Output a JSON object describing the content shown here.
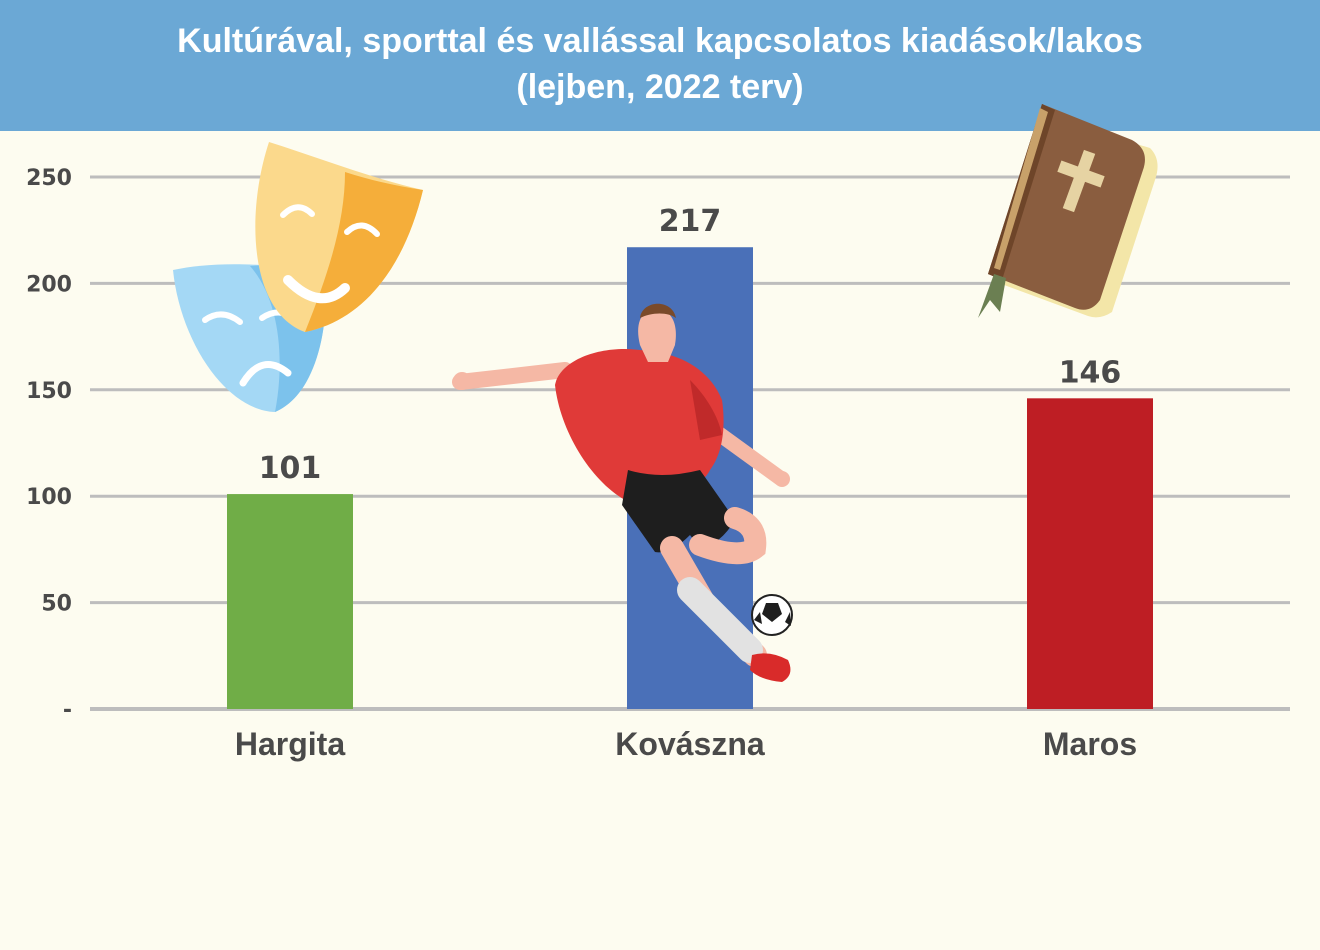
{
  "chart_data": {
    "type": "bar",
    "title": "Kultúrával, sporttal és vallással kapcsolatos kiadások/lakos",
    "subtitle": "(lejben, 2022 terv)",
    "categories": [
      "Hargita",
      "Kovászna",
      "Maros"
    ],
    "values": [
      101,
      217,
      146
    ],
    "data_labels": [
      "101",
      "217",
      "146"
    ],
    "colors": [
      "#70ad47",
      "#4a70b8",
      "#be1e24"
    ],
    "y_ticks": [
      0,
      50,
      100,
      150,
      200,
      250
    ],
    "y_tick_labels": [
      "-",
      "50",
      "100",
      "150",
      "200",
      "250"
    ],
    "ylim": [
      0,
      250
    ],
    "grid": true,
    "xlabel": "",
    "ylabel": ""
  },
  "icons": [
    "theater-masks-icon",
    "football-player-icon",
    "bible-icon"
  ]
}
